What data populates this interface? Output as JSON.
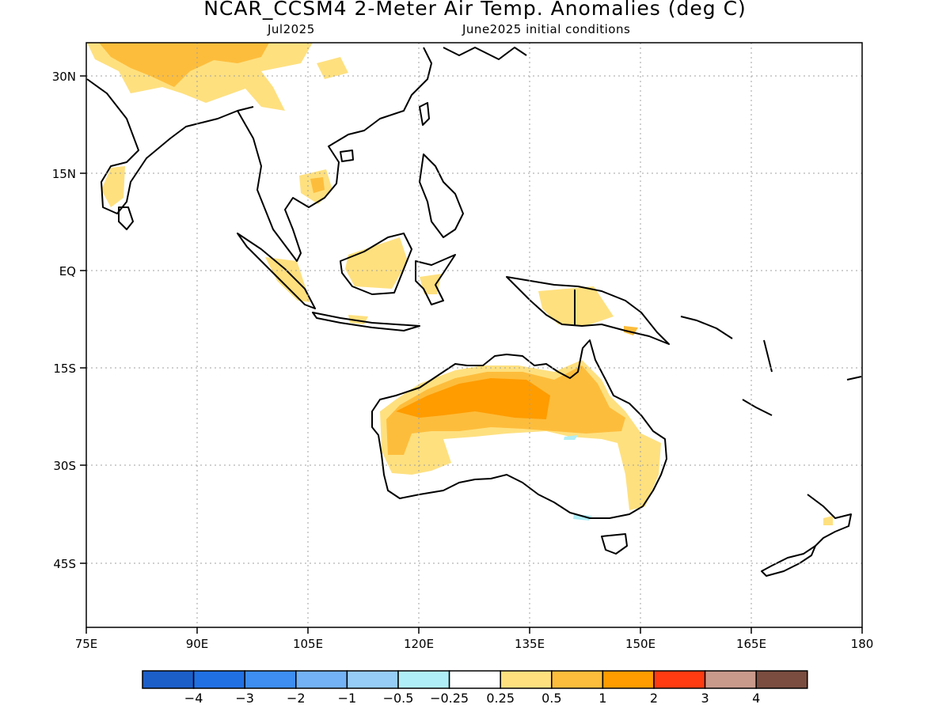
{
  "title": "NCAR_CCSM4 2-Meter Air Temp. Anomalies (deg C)",
  "subtitle_left": "Jul2025",
  "subtitle_right": "June2025 initial conditions",
  "map": {
    "lon_range": [
      75,
      180
    ],
    "lat_range": [
      -52,
      35
    ],
    "lon_ticks": [
      "75E",
      "90E",
      "105E",
      "120E",
      "135E",
      "150E",
      "165E",
      "180"
    ],
    "lat_ticks": [
      "30N",
      "15N",
      "EQ",
      "15S",
      "30S",
      "45S"
    ],
    "gridlines": true
  },
  "colorbar": {
    "labels": [
      "-4",
      "-3",
      "-2",
      "-1",
      "-0.5",
      "-0.25",
      "0.25",
      "0.5",
      "1",
      "2",
      "3",
      "4"
    ],
    "colors": [
      "#1c5fc9",
      "#2170e3",
      "#3d8ef0",
      "#73b2f5",
      "#96cdf7",
      "#b0eef7",
      "#ffffff",
      "#fee07f",
      "#fdbd3c",
      "#fe9c00",
      "#fe3b11",
      "#c89a8c",
      "#7a4d40"
    ]
  },
  "anomaly_colors": {
    "light_yellow": "#fee07f",
    "orange_light": "#fdbd3c",
    "orange": "#fe9c00",
    "cyan": "#b0eef7"
  }
}
